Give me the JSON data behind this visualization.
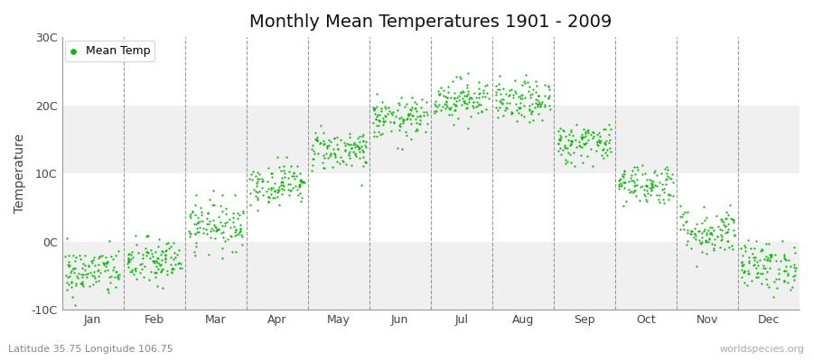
{
  "title": "Monthly Mean Temperatures 1901 - 2009",
  "ylabel": "Temperature",
  "subtitle": "Latitude 35.75 Longitude 106.75",
  "watermark": "worldspecies.org",
  "legend_label": "Mean Temp",
  "dot_color": "#00bb00",
  "background_color": "#ffffff",
  "plot_bg_color": "#ffffff",
  "band_color_light": "#f0f0f0",
  "band_color_dark": "#e0e0e0",
  "ylim": [
    -10,
    30
  ],
  "yticks": [
    -10,
    0,
    10,
    20,
    30
  ],
  "ytick_labels": [
    "-10C",
    "0C",
    "10C",
    "20C",
    "30C"
  ],
  "months": [
    "Jan",
    "Feb",
    "Mar",
    "Apr",
    "May",
    "Jun",
    "Jul",
    "Aug",
    "Sep",
    "Oct",
    "Nov",
    "Dec"
  ],
  "monthly_means": [
    -4.5,
    -3.0,
    2.5,
    8.5,
    13.5,
    18.0,
    21.0,
    20.5,
    14.5,
    8.5,
    1.5,
    -3.5
  ],
  "monthly_stds": [
    1.8,
    1.8,
    1.8,
    1.5,
    1.5,
    1.5,
    1.5,
    1.5,
    1.5,
    1.5,
    1.8,
    1.8
  ],
  "n_years": 109,
  "dot_size": 2.5,
  "title_fontsize": 14,
  "axis_label_fontsize": 10,
  "tick_fontsize": 9
}
